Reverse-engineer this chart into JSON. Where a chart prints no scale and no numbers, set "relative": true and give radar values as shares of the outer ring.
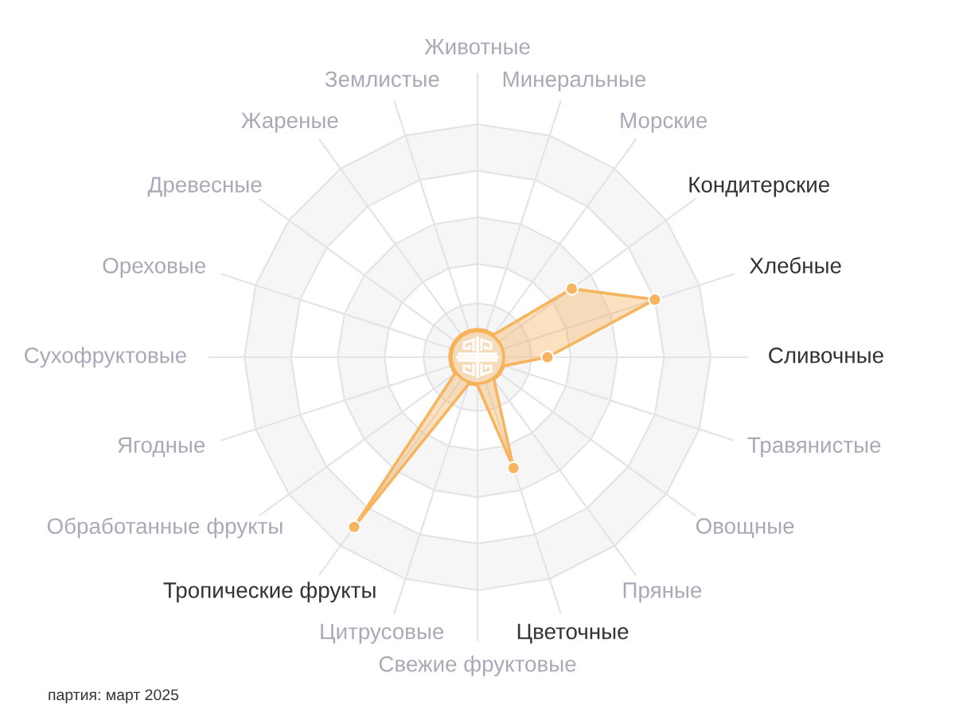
{
  "chart_data": {
    "type": "radar",
    "relative": true,
    "categories": [
      "Животные",
      "Минеральные",
      "Морские",
      "Кондитерские",
      "Хлебные",
      "Сливочные",
      "Травянистые",
      "Овощные",
      "Пряные",
      "Цветочные",
      "Свежие фруктовые",
      "Цитрусовые",
      "Тропические фрукты",
      "Обработанные фрукты",
      "Ягодные",
      "Сухофруктовые",
      "Ореховые",
      "Древесные",
      "Жареные",
      "Землистые"
    ],
    "series": [
      {
        "color": "#f6b55e",
        "values": [
          0.12,
          0.12,
          0.12,
          0.5,
          0.8,
          0.3,
          0.12,
          0.12,
          0.12,
          0.5,
          0.12,
          0.12,
          0.9,
          0.12,
          0.12,
          0.12,
          0.12,
          0.12,
          0.12,
          0.12
        ]
      }
    ],
    "marker": "circle",
    "grid": true,
    "annotations": [
      "партия: март 2025"
    ]
  }
}
